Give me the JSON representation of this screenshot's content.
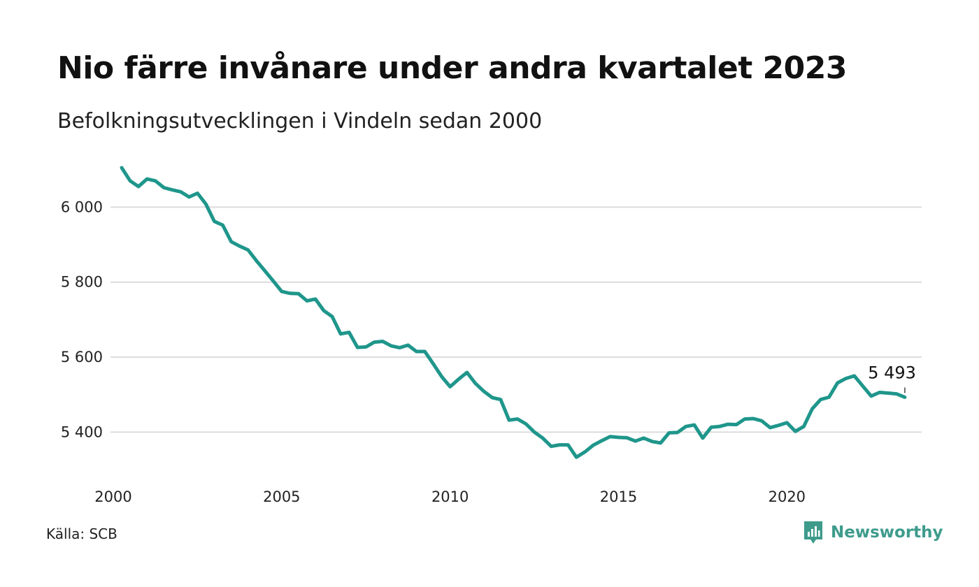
{
  "title": "Nio färre invånare under andra kvartalet 2023",
  "subtitle": "Befolkningsutvecklingen i Vindeln sedan 2000",
  "source": "Källa: SCB",
  "brand": {
    "name": "Newsworthy",
    "icon": "newsworthy-logo-icon",
    "color": "#3e9b8c"
  },
  "chart_data": {
    "type": "line",
    "title": "Nio färre invånare under andra kvartalet 2023",
    "subtitle": "Befolkningsutvecklingen i Vindeln sedan 2000",
    "xlabel": "",
    "ylabel": "",
    "xlim": [
      2000,
      2024
    ],
    "ylim": [
      5300,
      6120
    ],
    "x_ticks": [
      2000,
      2005,
      2010,
      2015,
      2020
    ],
    "x_tick_labels": [
      "2000",
      "2005",
      "2010",
      "2015",
      "2020"
    ],
    "y_ticks": [
      5400,
      5600,
      5800,
      6000
    ],
    "y_tick_labels": [
      "5 400",
      "5 600",
      "5 800",
      "6 000"
    ],
    "grid": "horizontal",
    "legend": "none",
    "line_color": "#1f968b",
    "x": [
      2000.25,
      2000.5,
      2000.75,
      2001.0,
      2001.25,
      2001.5,
      2001.75,
      2002.0,
      2002.25,
      2002.5,
      2002.75,
      2003.0,
      2003.25,
      2003.5,
      2003.75,
      2004.0,
      2004.25,
      2004.5,
      2004.75,
      2005.0,
      2005.25,
      2005.5,
      2005.75,
      2006.0,
      2006.25,
      2006.5,
      2006.75,
      2007.0,
      2007.25,
      2007.5,
      2007.75,
      2008.0,
      2008.25,
      2008.5,
      2008.75,
      2009.0,
      2009.25,
      2009.5,
      2009.75,
      2010.0,
      2010.25,
      2010.5,
      2010.75,
      2011.0,
      2011.25,
      2011.5,
      2011.75,
      2012.0,
      2012.25,
      2012.5,
      2012.75,
      2013.0,
      2013.25,
      2013.5,
      2013.75,
      2014.0,
      2014.25,
      2014.5,
      2014.75,
      2015.0,
      2015.25,
      2015.5,
      2015.75,
      2016.0,
      2016.25,
      2016.5,
      2016.75,
      2017.0,
      2017.25,
      2017.5,
      2017.75,
      2018.0,
      2018.25,
      2018.5,
      2018.75,
      2019.0,
      2019.25,
      2019.5,
      2019.75,
      2020.0,
      2020.25,
      2020.5,
      2020.75,
      2021.0,
      2021.25,
      2021.5,
      2021.75,
      2022.0,
      2022.25,
      2022.5,
      2022.75,
      2023.0,
      2023.25,
      2023.5
    ],
    "values": [
      6105,
      6070,
      6055,
      6075,
      6070,
      6052,
      6046,
      6041,
      6027,
      6037,
      6008,
      5962,
      5952,
      5908,
      5896,
      5886,
      5857,
      5830,
      5803,
      5775,
      5770,
      5769,
      5750,
      5755,
      5724,
      5708,
      5662,
      5666,
      5626,
      5627,
      5640,
      5642,
      5630,
      5625,
      5632,
      5615,
      5615,
      5582,
      5548,
      5521,
      5541,
      5559,
      5530,
      5509,
      5492,
      5487,
      5432,
      5435,
      5422,
      5400,
      5384,
      5362,
      5366,
      5366,
      5333,
      5347,
      5365,
      5377,
      5388,
      5386,
      5385,
      5376,
      5384,
      5375,
      5371,
      5398,
      5399,
      5415,
      5419,
      5384,
      5413,
      5415,
      5421,
      5420,
      5435,
      5436,
      5430,
      5412,
      5418,
      5425,
      5402,
      5415,
      5462,
      5487,
      5493,
      5531,
      5543,
      5550,
      5523,
      5496,
      5506,
      5504,
      5502,
      5493
    ],
    "annotations": [
      {
        "x": 2023.5,
        "y": 5493,
        "text": "5 493"
      }
    ]
  }
}
